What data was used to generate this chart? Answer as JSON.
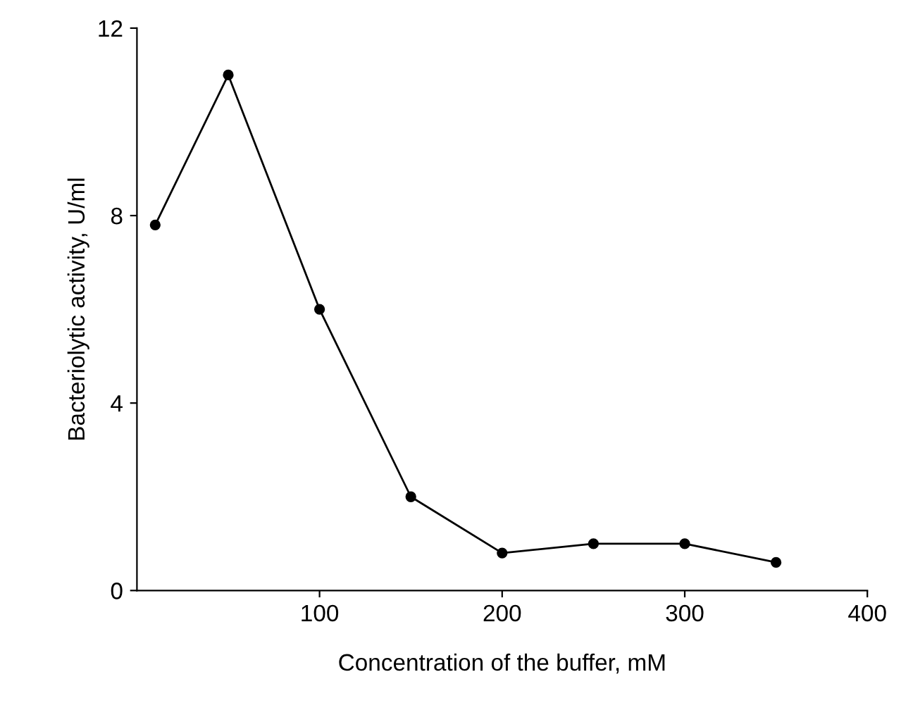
{
  "chart_data": {
    "type": "line",
    "xlabel": "Concentration of the buffer, mM",
    "ylabel": "Bacteriolytic activity, U/ml",
    "x": [
      10,
      50,
      100,
      150,
      200,
      250,
      300,
      350
    ],
    "series": [
      {
        "color": "#000000",
        "values": [
          7.8,
          11,
          6,
          2,
          0.8,
          1,
          1,
          0.6
        ]
      }
    ],
    "xlim": [
      0,
      400
    ],
    "xticks": [
      100,
      200,
      300,
      400
    ],
    "ylim": [
      0,
      12
    ],
    "yticks": [
      0,
      4,
      8,
      12
    ],
    "marker": "circle",
    "line_style": "solid",
    "grid": false
  }
}
